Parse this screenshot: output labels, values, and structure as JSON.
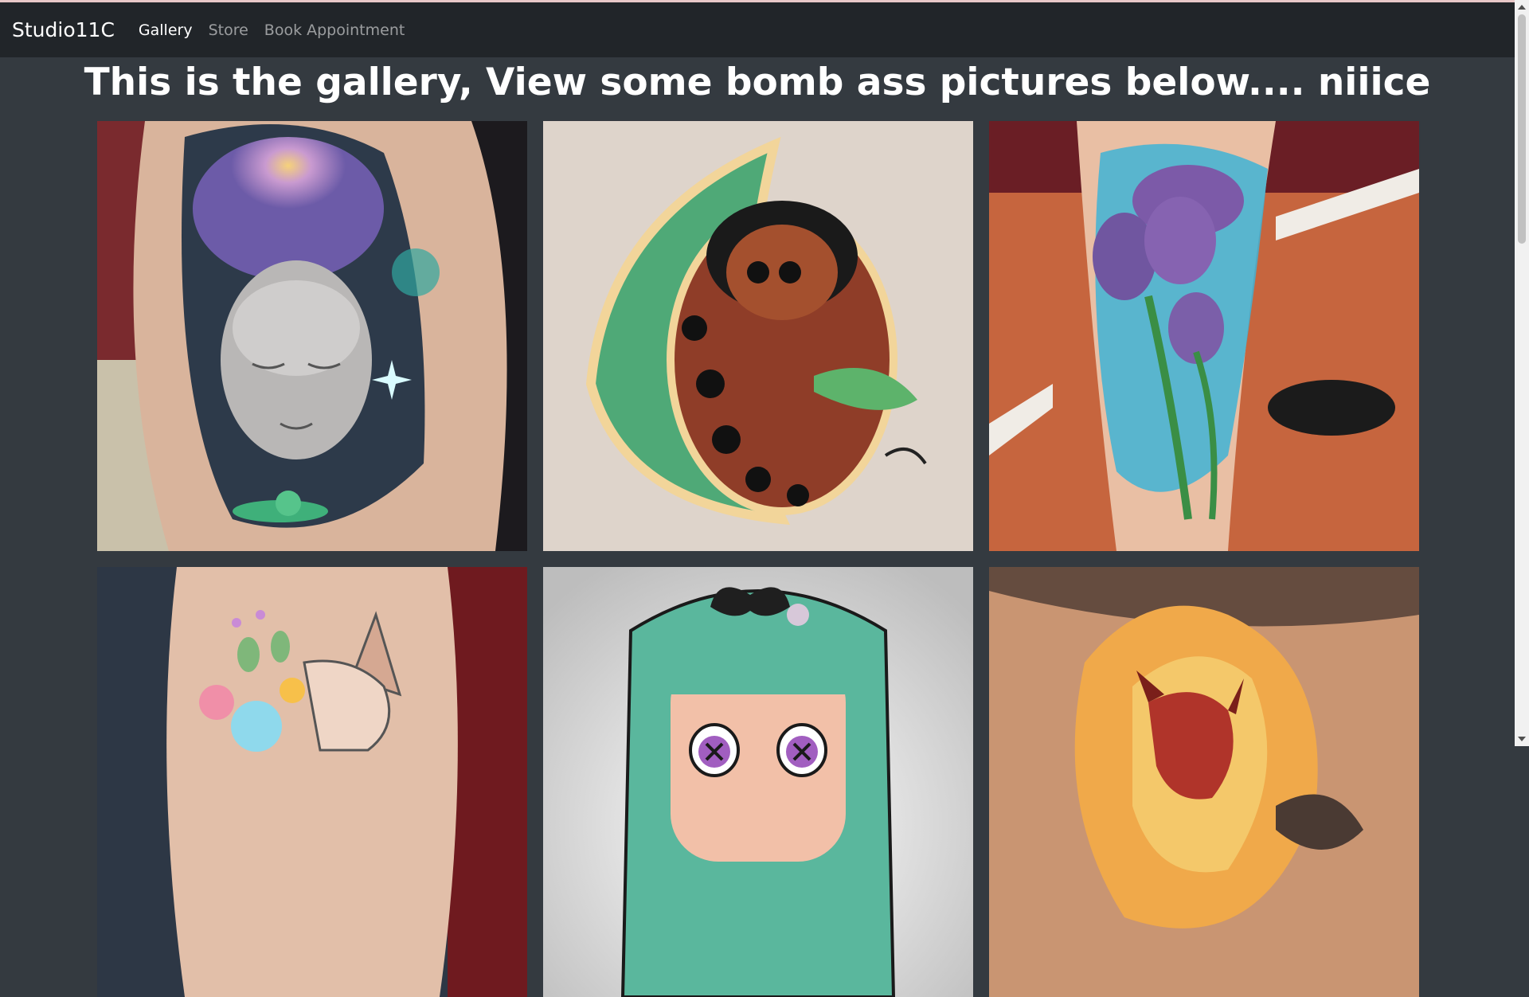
{
  "navbar": {
    "brand": "Studio11C",
    "links": [
      {
        "label": "Gallery",
        "active": true
      },
      {
        "label": "Store",
        "active": false
      },
      {
        "label": "Book Appointment",
        "active": false
      }
    ]
  },
  "main": {
    "heading": "This is the gallery, View some bomb ass pictures below.... niiice"
  },
  "gallery": {
    "images": [
      {
        "subject": "buddha-galaxy-tattoo"
      },
      {
        "subject": "pillbug-leaf-drawing"
      },
      {
        "subject": "tulip-leg-tattoo"
      },
      {
        "subject": "floral-fox-tattoo"
      },
      {
        "subject": "green-hair-girl-drawing"
      },
      {
        "subject": "flame-devil-tattoo"
      }
    ]
  },
  "colors": {
    "navbar_bg": "#212529",
    "page_bg": "#343a40",
    "text_primary": "#ffffff",
    "text_muted": "#8f9296"
  }
}
